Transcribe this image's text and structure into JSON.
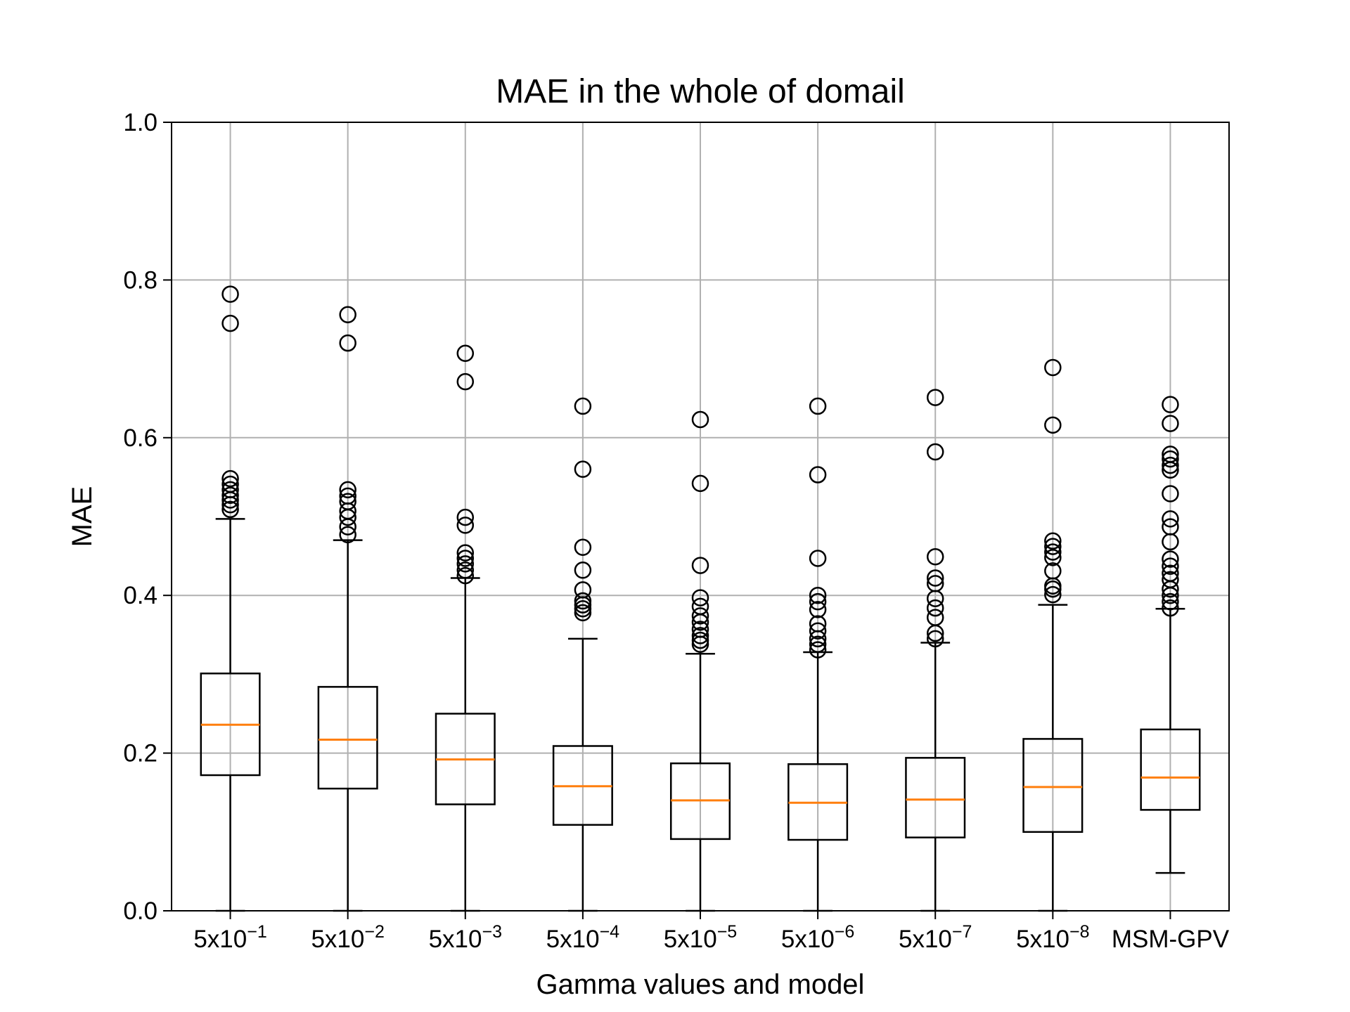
{
  "chart_data": {
    "type": "boxplot",
    "title": "MAE in the whole of domail",
    "xlabel": "Gamma values and model",
    "ylabel": "MAE",
    "ylim": [
      0,
      1.0
    ],
    "yticks": [
      "0.0",
      "0.2",
      "0.4",
      "0.6",
      "0.8",
      "1.0"
    ],
    "grid": true,
    "colors": {
      "box": "#000000",
      "median": "#ff7f0e",
      "grid": "#b0b0b0"
    },
    "categories": [
      {
        "base": "5x10",
        "exp": "−1"
      },
      {
        "base": "5x10",
        "exp": "−2"
      },
      {
        "base": "5x10",
        "exp": "−3"
      },
      {
        "base": "5x10",
        "exp": "−4"
      },
      {
        "base": "5x10",
        "exp": "−5"
      },
      {
        "base": "5x10",
        "exp": "−6"
      },
      {
        "base": "5x10",
        "exp": "−7"
      },
      {
        "base": "5x10",
        "exp": "−8"
      },
      {
        "base": "MSM-GPV",
        "exp": ""
      }
    ],
    "boxes": [
      {
        "whislo": 0.0,
        "q1": 0.172,
        "med": 0.236,
        "q3": 0.301,
        "whishi": 0.497,
        "fliers": [
          0.509,
          0.515,
          0.521,
          0.527,
          0.534,
          0.541,
          0.548,
          0.745,
          0.782
        ]
      },
      {
        "whislo": 0.0,
        "q1": 0.155,
        "med": 0.217,
        "q3": 0.284,
        "whishi": 0.47,
        "fliers": [
          0.477,
          0.487,
          0.499,
          0.507,
          0.519,
          0.526,
          0.534,
          0.72,
          0.756
        ]
      },
      {
        "whislo": 0.0,
        "q1": 0.135,
        "med": 0.192,
        "q3": 0.25,
        "whishi": 0.422,
        "fliers": [
          0.425,
          0.432,
          0.44,
          0.447,
          0.454,
          0.489,
          0.499,
          0.671,
          0.707
        ]
      },
      {
        "whislo": 0.0,
        "q1": 0.109,
        "med": 0.158,
        "q3": 0.209,
        "whishi": 0.345,
        "fliers": [
          0.378,
          0.383,
          0.388,
          0.393,
          0.407,
          0.432,
          0.461,
          0.56,
          0.64
        ]
      },
      {
        "whislo": 0.0,
        "q1": 0.091,
        "med": 0.14,
        "q3": 0.187,
        "whishi": 0.326,
        "fliers": [
          0.338,
          0.343,
          0.349,
          0.357,
          0.366,
          0.374,
          0.386,
          0.397,
          0.438,
          0.542,
          0.623
        ]
      },
      {
        "whislo": 0.0,
        "q1": 0.09,
        "med": 0.137,
        "q3": 0.186,
        "whishi": 0.328,
        "fliers": [
          0.331,
          0.338,
          0.345,
          0.355,
          0.364,
          0.382,
          0.392,
          0.4,
          0.447,
          0.553,
          0.64
        ]
      },
      {
        "whislo": 0.0,
        "q1": 0.093,
        "med": 0.141,
        "q3": 0.194,
        "whishi": 0.34,
        "fliers": [
          0.345,
          0.352,
          0.372,
          0.384,
          0.396,
          0.415,
          0.422,
          0.449,
          0.582,
          0.651
        ]
      },
      {
        "whislo": 0.0,
        "q1": 0.1,
        "med": 0.157,
        "q3": 0.218,
        "whishi": 0.388,
        "fliers": [
          0.401,
          0.408,
          0.412,
          0.431,
          0.448,
          0.455,
          0.462,
          0.469,
          0.616,
          0.689
        ]
      },
      {
        "whislo": 0.048,
        "q1": 0.128,
        "med": 0.169,
        "q3": 0.23,
        "whishi": 0.383,
        "fliers": [
          0.384,
          0.392,
          0.4,
          0.408,
          0.42,
          0.428,
          0.437,
          0.446,
          0.468,
          0.487,
          0.497,
          0.529,
          0.559,
          0.565,
          0.573,
          0.579,
          0.618,
          0.642
        ]
      }
    ]
  }
}
